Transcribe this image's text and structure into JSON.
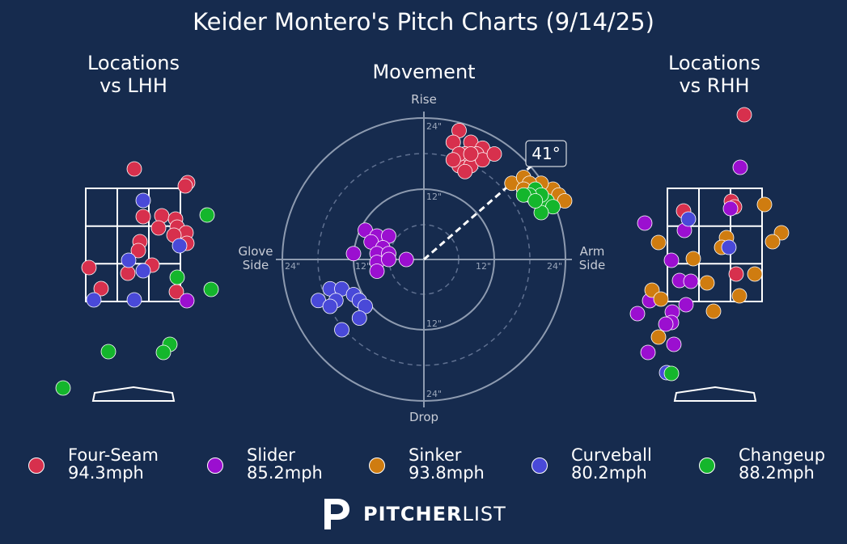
{
  "colors": {
    "background": "#162b4e",
    "four_seam": "#d7304d",
    "slider": "#9b0fd0",
    "sinker": "#cf7c10",
    "curveball": "#4949d8",
    "changeup": "#14b62c"
  },
  "chart_data": {
    "type": "scatter",
    "title": "Keider Montero's Pitch Charts (9/14/25)",
    "panels": {
      "lhh": {
        "title": "Locations\nvs LHH"
      },
      "movement": {
        "title": "Movement",
        "axis_labels": {
          "top": "Rise",
          "bottom": "Drop",
          "left": "Glove\nSide",
          "right": "Arm\nSide"
        },
        "ring_labels": [
          "12\"",
          "24\""
        ],
        "arm_angle_label": "41°"
      },
      "rhh": {
        "title": "Locations\nvs RHH"
      }
    },
    "series": [
      {
        "name": "Four-Seam",
        "speed": "94.3mph",
        "color": "#d7304d",
        "movement": [
          [
            6,
            22
          ],
          [
            8,
            20
          ],
          [
            10,
            19
          ],
          [
            5,
            20
          ],
          [
            7,
            18
          ],
          [
            9,
            18
          ],
          [
            6,
            16
          ],
          [
            8,
            16
          ],
          [
            7,
            15
          ],
          [
            10,
            17
          ],
          [
            12,
            18
          ],
          [
            6,
            18
          ],
          [
            8,
            18
          ],
          [
            5,
            17
          ]
        ],
        "loc_lhh": [
          [
            60,
            -24
          ],
          [
            126,
            -7
          ],
          [
            123,
            -3
          ],
          [
            71,
            35
          ],
          [
            94,
            34
          ],
          [
            111,
            38
          ],
          [
            90,
            49
          ],
          [
            113,
            48
          ],
          [
            124,
            55
          ],
          [
            109,
            58
          ],
          [
            67,
            66
          ],
          [
            125,
            68
          ],
          [
            65,
            77
          ],
          [
            82,
            95
          ],
          [
            52,
            105
          ],
          [
            4,
            98
          ],
          [
            112,
            128
          ],
          [
            19,
            124
          ]
        ],
        "loc_rhh": [
          [
            95,
            -91
          ],
          [
            79,
            16
          ],
          [
            83,
            23
          ],
          [
            20,
            28
          ],
          [
            85,
            106
          ]
        ]
      },
      {
        "name": "Slider",
        "speed": "85.2mph",
        "color": "#9b0fd0",
        "movement": [
          [
            -10,
            5
          ],
          [
            -8,
            4
          ],
          [
            -6,
            4
          ],
          [
            -9,
            3
          ],
          [
            -7,
            2
          ],
          [
            -8,
            1
          ],
          [
            -6,
            1
          ],
          [
            -12,
            1
          ],
          [
            -8,
            -0.5
          ],
          [
            -6,
            0
          ],
          [
            -3,
            0
          ],
          [
            -8,
            -2
          ]
        ],
        "loc_lhh": [
          [
            125,
            139
          ]
        ],
        "loc_rhh": [
          [
            90,
            -26
          ],
          [
            78,
            25
          ],
          [
            21,
            52
          ],
          [
            -28,
            43
          ],
          [
            5,
            89
          ],
          [
            15,
            114
          ],
          [
            29,
            115
          ],
          [
            23,
            144
          ],
          [
            -22,
            139
          ],
          [
            -37,
            155
          ],
          [
            6,
            153
          ],
          [
            5,
            166
          ],
          [
            -2,
            168
          ],
          [
            8,
            193
          ],
          [
            -24,
            203
          ]
        ],
        "loc_rhh_note": "purple near zone left"
      },
      {
        "name": "Sinker",
        "speed": "93.8mph",
        "color": "#cf7c10",
        "movement": [
          [
            15,
            13
          ],
          [
            17,
            14
          ],
          [
            18,
            11
          ],
          [
            19,
            12
          ],
          [
            20,
            10
          ],
          [
            21,
            11
          ],
          [
            22,
            12
          ],
          [
            23,
            11
          ],
          [
            24,
            10
          ],
          [
            20,
            13
          ],
          [
            18,
            13
          ],
          [
            17,
            12
          ]
        ],
        "loc_rhh": [
          [
            120,
            20
          ],
          [
            73,
            61
          ],
          [
            67,
            73
          ],
          [
            141,
            55
          ],
          [
            130,
            66
          ],
          [
            -11,
            67
          ],
          [
            32,
            87
          ],
          [
            49,
            117
          ],
          [
            108,
            106
          ],
          [
            89,
            133
          ],
          [
            -19,
            126
          ],
          [
            -8,
            137
          ],
          [
            57,
            152
          ],
          [
            -11,
            184
          ]
        ]
      },
      {
        "name": "Curveball",
        "speed": "80.2mph",
        "color": "#4949d8",
        "movement": [
          [
            -16,
            -5
          ],
          [
            -14,
            -5
          ],
          [
            -12,
            -6
          ],
          [
            -15,
            -7
          ],
          [
            -11,
            -7
          ],
          [
            -10,
            -8
          ],
          [
            -18,
            -7
          ],
          [
            -16,
            -8
          ],
          [
            -11,
            -10
          ],
          [
            -14,
            -12
          ]
        ],
        "loc_lhh": [
          [
            71,
            15
          ],
          [
            116,
            71
          ],
          [
            53,
            89
          ],
          [
            71,
            102
          ],
          [
            10,
            138
          ],
          [
            60,
            138
          ]
        ],
        "loc_rhh": [
          [
            26,
            38
          ],
          [
            76,
            73
          ],
          [
            -1,
            228
          ]
        ]
      },
      {
        "name": "Changeup",
        "speed": "88.2mph",
        "color": "#14b62c",
        "movement": [
          [
            19,
            12
          ],
          [
            21,
            10
          ],
          [
            20,
            11
          ],
          [
            22,
            9
          ],
          [
            20,
            8
          ],
          [
            18,
            11
          ],
          [
            17,
            11
          ],
          [
            19,
            10
          ]
        ],
        "loc_lhh": [
          [
            150,
            33
          ],
          [
            113,
            110
          ],
          [
            155,
            125
          ],
          [
            28,
            202
          ],
          [
            104,
            193
          ],
          [
            96,
            203
          ],
          [
            -28,
            247
          ]
        ],
        "loc_rhh": [
          [
            5,
            229
          ]
        ]
      }
    ]
  },
  "legend": [
    {
      "name": "Four-Seam",
      "speed": "94.3mph"
    },
    {
      "name": "Slider",
      "speed": "85.2mph"
    },
    {
      "name": "Sinker",
      "speed": "93.8mph"
    },
    {
      "name": "Curveball",
      "speed": "80.2mph"
    },
    {
      "name": "Changeup",
      "speed": "88.2mph"
    }
  ],
  "footer": {
    "logo_text_bold": "PITCHER",
    "logo_text_light": "LIST",
    "logo_icon": "pitcherlist-p-icon"
  }
}
